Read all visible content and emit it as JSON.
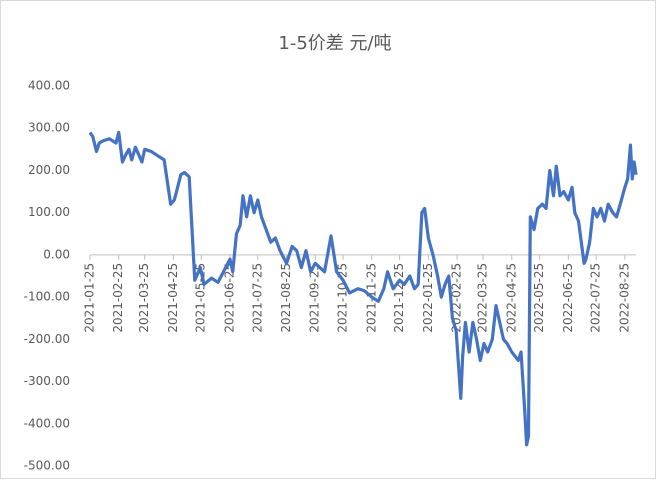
{
  "chart_data": {
    "type": "line",
    "title": "1-5价差 元/吨",
    "x": [
      "2021-01-25",
      "2021-01-28",
      "2021-02-01",
      "2021-02-04",
      "2021-02-08",
      "2021-02-15",
      "2021-02-22",
      "2021-02-25",
      "2021-03-01",
      "2021-03-04",
      "2021-03-08",
      "2021-03-11",
      "2021-03-15",
      "2021-03-18",
      "2021-03-22",
      "2021-03-25",
      "2021-04-01",
      "2021-04-08",
      "2021-04-15",
      "2021-04-19",
      "2021-04-22",
      "2021-04-26",
      "2021-05-03",
      "2021-05-07",
      "2021-05-12",
      "2021-05-18",
      "2021-05-24",
      "2021-05-28",
      "2021-06-05",
      "2021-06-12",
      "2021-06-18",
      "2021-06-25",
      "2021-06-28",
      "2021-07-02",
      "2021-07-06",
      "2021-07-09",
      "2021-07-13",
      "2021-07-17",
      "2021-07-21",
      "2021-07-25",
      "2021-07-29",
      "2021-08-03",
      "2021-08-08",
      "2021-08-13",
      "2021-08-18",
      "2021-08-25",
      "2021-08-31",
      "2021-09-05",
      "2021-09-10",
      "2021-09-15",
      "2021-09-20",
      "2021-09-25",
      "2021-10-05",
      "2021-10-12",
      "2021-10-18",
      "2021-10-25",
      "2021-11-01",
      "2021-11-10",
      "2021-11-17",
      "2021-11-25",
      "2021-12-02",
      "2021-12-08",
      "2021-12-12",
      "2021-12-18",
      "2021-12-25",
      "2021-12-30",
      "2022-01-05",
      "2022-01-10",
      "2022-01-14",
      "2022-01-18",
      "2022-01-21",
      "2022-01-25",
      "2022-01-30",
      "2022-02-04",
      "2022-02-08",
      "2022-02-12",
      "2022-02-16",
      "2022-02-20",
      "2022-02-24",
      "2022-03-01",
      "2022-03-03",
      "2022-03-06",
      "2022-03-10",
      "2022-03-14",
      "2022-03-18",
      "2022-03-22",
      "2022-03-26",
      "2022-03-30",
      "2022-04-04",
      "2022-04-08",
      "2022-04-12",
      "2022-04-16",
      "2022-04-20",
      "2022-04-25",
      "2022-05-02",
      "2022-05-05",
      "2022-05-09",
      "2022-05-11",
      "2022-05-13",
      "2022-05-15",
      "2022-05-19",
      "2022-05-23",
      "2022-05-28",
      "2022-06-01",
      "2022-06-05",
      "2022-06-09",
      "2022-06-12",
      "2022-06-16",
      "2022-06-20",
      "2022-06-25",
      "2022-06-29",
      "2022-07-02",
      "2022-07-06",
      "2022-07-12",
      "2022-07-14",
      "2022-07-18",
      "2022-07-22",
      "2022-07-26",
      "2022-07-30",
      "2022-08-03",
      "2022-08-07",
      "2022-08-12",
      "2022-08-16",
      "2022-08-20",
      "2022-08-25",
      "2022-08-28",
      "2022-08-31",
      "2022-09-02",
      "2022-09-04",
      "2022-09-06"
    ],
    "series": [
      {
        "color": "#4472c4",
        "values": [
          290,
          280,
          245,
          265,
          270,
          275,
          265,
          290,
          220,
          235,
          250,
          225,
          255,
          240,
          220,
          250,
          245,
          235,
          225,
          165,
          120,
          130,
          190,
          195,
          185,
          -60,
          -30,
          -70,
          -55,
          -65,
          -40,
          -10,
          -40,
          50,
          70,
          140,
          90,
          140,
          100,
          130,
          90,
          60,
          30,
          40,
          10,
          -20,
          20,
          10,
          -30,
          10,
          -40,
          -20,
          -40,
          45,
          -40,
          -60,
          -90,
          -80,
          -85,
          -100,
          -110,
          -80,
          -40,
          -80,
          -60,
          -70,
          -50,
          -80,
          -70,
          100,
          110,
          40,
          0,
          -50,
          -100,
          -70,
          -50,
          -150,
          -180,
          -340,
          -240,
          -160,
          -230,
          -160,
          -200,
          -250,
          -210,
          -230,
          -200,
          -120,
          -160,
          -200,
          -210,
          -230,
          -250,
          -230,
          -370,
          -450,
          -430,
          90,
          60,
          110,
          120,
          110,
          200,
          140,
          210,
          140,
          150,
          130,
          160,
          100,
          80,
          -20,
          -10,
          30,
          110,
          90,
          110,
          80,
          120,
          100,
          90,
          120,
          160,
          180,
          260,
          180,
          220,
          190
        ]
      }
    ],
    "xlim": [
      "2021-01-25",
      "2022-09-06"
    ],
    "xticks": [
      "2021-01-25",
      "2021-02-25",
      "2021-03-25",
      "2021-04-25",
      "2021-05-25",
      "2021-06-25",
      "2021-07-25",
      "2021-08-25",
      "2021-09-25",
      "2021-10-25",
      "2021-11-25",
      "2021-12-25",
      "2022-01-25",
      "2022-02-25",
      "2022-03-25",
      "2022-04-25",
      "2022-05-25",
      "2022-06-25",
      "2022-07-25",
      "2022-08-25"
    ],
    "ylim": [
      -500,
      400
    ],
    "yticks": [
      {
        "value": 400,
        "label": "400.00"
      },
      {
        "value": 300,
        "label": "300.00"
      },
      {
        "value": 200,
        "label": "200.00"
      },
      {
        "value": 100,
        "label": "100.00"
      },
      {
        "value": 0,
        "label": "0.00"
      },
      {
        "value": -100,
        "label": "-100.00"
      },
      {
        "value": -200,
        "label": "-200.00"
      },
      {
        "value": -300,
        "label": "-300.00"
      },
      {
        "value": -400,
        "label": "-400.00"
      },
      {
        "value": -500,
        "label": "-500.00"
      }
    ]
  }
}
